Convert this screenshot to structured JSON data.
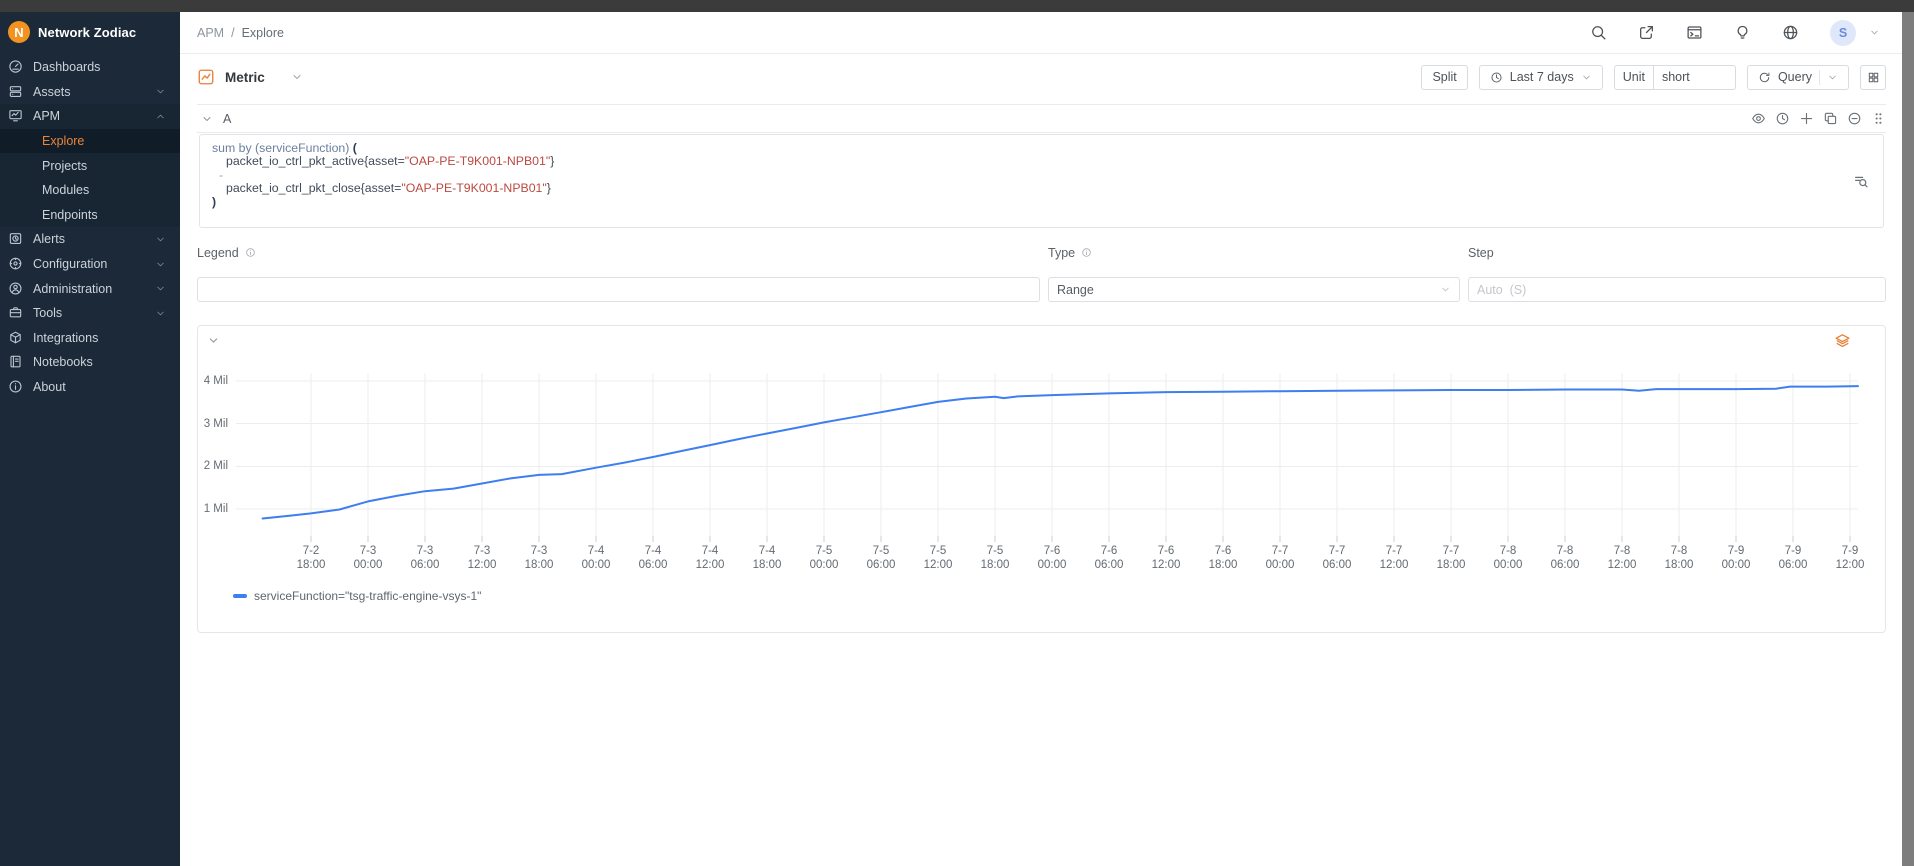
{
  "brand": {
    "name": "Network Zodiac",
    "logo_letter": "N"
  },
  "sidebar": {
    "items": [
      {
        "label": "Dashboards",
        "icon": "dashboards-icon"
      },
      {
        "label": "Assets",
        "icon": "assets-icon",
        "chevron": "down"
      },
      {
        "label": "APM",
        "icon": "apm-icon",
        "chevron": "up",
        "section_bg": true
      },
      {
        "label": "Explore",
        "child": true,
        "active": true,
        "section_bg": true
      },
      {
        "label": "Projects",
        "child": true,
        "section_bg": true
      },
      {
        "label": "Modules",
        "child": true,
        "section_bg": true
      },
      {
        "label": "Endpoints",
        "child": true,
        "section_bg": true
      },
      {
        "label": "Alerts",
        "icon": "alerts-icon",
        "chevron": "down"
      },
      {
        "label": "Configuration",
        "icon": "configuration-icon",
        "chevron": "down"
      },
      {
        "label": "Administration",
        "icon": "administration-icon",
        "chevron": "down"
      },
      {
        "label": "Tools",
        "icon": "tools-icon",
        "chevron": "down"
      },
      {
        "label": "Integrations",
        "icon": "integrations-icon"
      },
      {
        "label": "Notebooks",
        "icon": "notebooks-icon"
      },
      {
        "label": "About",
        "icon": "about-icon"
      }
    ]
  },
  "header": {
    "breadcrumb": {
      "parent": "APM",
      "separator": "/",
      "current": "Explore"
    },
    "icons": [
      "search-icon",
      "open-in-new-icon",
      "terminal-icon",
      "lightbulb-icon",
      "globe-icon"
    ],
    "avatar_letter": "S"
  },
  "toolbar": {
    "metric_label": "Metric",
    "split_label": "Split",
    "time_range_label": "Last 7 days",
    "unit_label": "Unit",
    "unit_value": "short",
    "query_label": "Query"
  },
  "query": {
    "row_id": "A",
    "toolbar_icons": [
      "eye-icon",
      "clock-icon",
      "plus-icon",
      "copy-icon",
      "minus-circle-icon",
      "drag-handle-icon"
    ],
    "code_lines": [
      {
        "ind": 0,
        "tokens": [
          {
            "t": "sum by (serviceFunction) ",
            "c": "kw"
          },
          {
            "t": "(",
            "c": "paren"
          }
        ]
      },
      {
        "ind": 2,
        "tokens": [
          {
            "t": "packet_io_ctrl_pkt_active{asset=",
            "c": "name"
          },
          {
            "t": "\"OAP-PE-T9K001-NPB01\"",
            "c": "str"
          },
          {
            "t": "}",
            "c": "name"
          }
        ]
      },
      {
        "ind": 1,
        "tokens": [
          {
            "t": "-",
            "c": "op"
          }
        ]
      },
      {
        "ind": 2,
        "tokens": [
          {
            "t": "packet_io_ctrl_pkt_close{asset=",
            "c": "name"
          },
          {
            "t": "\"OAP-PE-T9K001-NPB01\"",
            "c": "str"
          },
          {
            "t": "}",
            "c": "name"
          }
        ]
      },
      {
        "ind": 0,
        "tokens": [
          {
            "t": ")",
            "c": "paren"
          }
        ]
      }
    ]
  },
  "form": {
    "legend_label": "Legend",
    "type_label": "Type",
    "type_value": "Range",
    "step_label": "Step",
    "step_placeholder": "Auto  (S)"
  },
  "chart_data": {
    "type": "line",
    "title": "",
    "xlabel": "",
    "ylabel": "",
    "unit": "short",
    "grid": true,
    "legend_position": "bottom",
    "ylim": [
      0.37,
      4.28
    ],
    "y_ticks": [
      {
        "value": 1,
        "label": "1 Mil"
      },
      {
        "value": 2,
        "label": "2 Mil"
      },
      {
        "value": 3,
        "label": "3 Mil"
      },
      {
        "value": 4,
        "label": "4 Mil"
      }
    ],
    "x_tick_interval_hours": 6,
    "x_tick_labels": [
      [
        "7-2",
        "18:00"
      ],
      [
        "7-3",
        "00:00"
      ],
      [
        "7-3",
        "06:00"
      ],
      [
        "7-3",
        "12:00"
      ],
      [
        "7-3",
        "18:00"
      ],
      [
        "7-4",
        "00:00"
      ],
      [
        "7-4",
        "06:00"
      ],
      [
        "7-4",
        "12:00"
      ],
      [
        "7-4",
        "18:00"
      ],
      [
        "7-5",
        "00:00"
      ],
      [
        "7-5",
        "06:00"
      ],
      [
        "7-5",
        "12:00"
      ],
      [
        "7-5",
        "18:00"
      ],
      [
        "7-6",
        "00:00"
      ],
      [
        "7-6",
        "06:00"
      ],
      [
        "7-6",
        "12:00"
      ],
      [
        "7-6",
        "18:00"
      ],
      [
        "7-7",
        "00:00"
      ],
      [
        "7-7",
        "06:00"
      ],
      [
        "7-7",
        "12:00"
      ],
      [
        "7-7",
        "18:00"
      ],
      [
        "7-8",
        "00:00"
      ],
      [
        "7-8",
        "06:00"
      ],
      [
        "7-8",
        "12:00"
      ],
      [
        "7-8",
        "18:00"
      ],
      [
        "7-9",
        "00:00"
      ],
      [
        "7-9",
        "06:00"
      ],
      [
        "7-9",
        "12:00"
      ]
    ],
    "series": [
      {
        "name": "serviceFunction=\"tsg-traffic-engine-vsys-1\"",
        "color": "#3e7ef0",
        "unit_scale": "Mil",
        "points_tick_value": [
          [
            -0.85,
            0.78
          ],
          [
            -0.4,
            0.84
          ],
          [
            0,
            0.9
          ],
          [
            0.5,
            0.99
          ],
          [
            1,
            1.18
          ],
          [
            1.5,
            1.31
          ],
          [
            2,
            1.42
          ],
          [
            2.5,
            1.48
          ],
          [
            3,
            1.6
          ],
          [
            3.5,
            1.72
          ],
          [
            4,
            1.8
          ],
          [
            4.4,
            1.82
          ],
          [
            5,
            1.97
          ],
          [
            5.5,
            2.09
          ],
          [
            6,
            2.22
          ],
          [
            6.5,
            2.36
          ],
          [
            7,
            2.5
          ],
          [
            7.5,
            2.64
          ],
          [
            8,
            2.77
          ],
          [
            8.5,
            2.9
          ],
          [
            9,
            3.03
          ],
          [
            9.5,
            3.15
          ],
          [
            10,
            3.27
          ],
          [
            10.5,
            3.39
          ],
          [
            11,
            3.51
          ],
          [
            11.5,
            3.59
          ],
          [
            12,
            3.63
          ],
          [
            12.15,
            3.6
          ],
          [
            12.4,
            3.64
          ],
          [
            13,
            3.67
          ],
          [
            14,
            3.71
          ],
          [
            15,
            3.74
          ],
          [
            16,
            3.75
          ],
          [
            17,
            3.76
          ],
          [
            18,
            3.77
          ],
          [
            19,
            3.78
          ],
          [
            20,
            3.79
          ],
          [
            21,
            3.79
          ],
          [
            22,
            3.8
          ],
          [
            23,
            3.8
          ],
          [
            23.3,
            3.77
          ],
          [
            23.6,
            3.81
          ],
          [
            24,
            3.81
          ],
          [
            25,
            3.81
          ],
          [
            25.7,
            3.82
          ],
          [
            25.95,
            3.87
          ],
          [
            26.6,
            3.87
          ],
          [
            27.15,
            3.88
          ]
        ]
      }
    ]
  },
  "colors": {
    "accent_orange": "#e87f35",
    "line_blue": "#3e7ef0",
    "sidebar_bg": "#1b2938"
  }
}
